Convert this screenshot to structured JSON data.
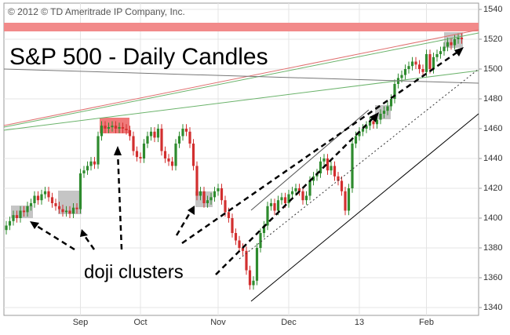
{
  "chart_data": {
    "type": "candlestick",
    "title": "S&P 500 - Daily Candles",
    "copyright": "© 2012 © TD Ameritrade IP Company, Inc.",
    "annotation": "doji clusters",
    "categories": [
      null,
      null,
      null,
      null,
      null,
      null,
      null,
      null,
      null,
      null,
      null,
      null,
      null,
      null,
      null,
      null,
      null,
      null,
      null,
      null,
      null,
      "Sep",
      null,
      null,
      null,
      null,
      null,
      null,
      null,
      null,
      null,
      null,
      null,
      null,
      null,
      null,
      null,
      null,
      "Oct",
      null,
      null,
      null,
      null,
      null,
      null,
      null,
      null,
      null,
      null,
      null,
      null,
      null,
      null,
      null,
      null,
      null,
      null,
      null,
      null,
      null,
      "Nov",
      null,
      null,
      null,
      null,
      null,
      null,
      null,
      null,
      null,
      null,
      null,
      null,
      null,
      null,
      null,
      null,
      null,
      null,
      null,
      "Dec",
      null,
      null,
      null,
      null,
      null,
      null,
      null,
      null,
      null,
      null,
      null,
      null,
      null,
      null,
      null,
      null,
      null,
      null,
      null,
      "13",
      null,
      null,
      null,
      null,
      null,
      null,
      null,
      null,
      null,
      null,
      null,
      null,
      null,
      null,
      null,
      null,
      null,
      null,
      "Feb",
      null,
      null,
      null,
      null,
      null,
      null,
      null,
      null,
      null,
      null
    ],
    "open": [
      1392,
      1395,
      1398,
      1402,
      1400,
      1405,
      1404,
      1408,
      1410,
      1415,
      1412,
      1416,
      1418,
      1414,
      1410,
      1408,
      1406,
      1404,
      1405,
      1403,
      1407,
      1406,
      1430,
      1432,
      1435,
      1438,
      1436,
      1455,
      1462,
      1460,
      1461,
      1462,
      1460,
      1461,
      1460,
      1459,
      1455,
      1445,
      1441,
      1440,
      1450,
      1455,
      1458,
      1454,
      1460,
      1445,
      1440,
      1438,
      1435,
      1450,
      1455,
      1460,
      1458,
      1450,
      1435,
      1415,
      1418,
      1410,
      1412,
      1414,
      1418,
      1420,
      1412,
      1404,
      1400,
      1390,
      1385,
      1380,
      1378,
      1365,
      1355,
      1358,
      1380,
      1390,
      1395,
      1408,
      1410,
      1405,
      1412,
      1414,
      1410,
      1416,
      1418,
      1420,
      1418,
      1412,
      1415,
      1425,
      1428,
      1430,
      1438,
      1440,
      1432,
      1435,
      1428,
      1425,
      1418,
      1405,
      1420,
      1450,
      1455,
      1458,
      1460,
      1462,
      1465,
      1463,
      1466,
      1470,
      1472,
      1475,
      1480,
      1490,
      1494,
      1496,
      1500,
      1502,
      1505,
      1503,
      1500,
      1498,
      1510,
      1500,
      1508,
      1510,
      1512,
      1515,
      1518,
      1516,
      1520,
      1521
    ],
    "high": [
      1398,
      1401,
      1405,
      1405,
      1408,
      1408,
      1411,
      1413,
      1418,
      1418,
      1419,
      1421,
      1421,
      1417,
      1413,
      1411,
      1409,
      1408,
      1408,
      1410,
      1410,
      1433,
      1435,
      1438,
      1441,
      1441,
      1458,
      1465,
      1465,
      1464,
      1465,
      1465,
      1464,
      1464,
      1463,
      1462,
      1458,
      1448,
      1444,
      1453,
      1458,
      1461,
      1461,
      1463,
      1463,
      1448,
      1443,
      1441,
      1453,
      1458,
      1463,
      1463,
      1461,
      1453,
      1438,
      1421,
      1421,
      1415,
      1417,
      1421,
      1423,
      1423,
      1415,
      1407,
      1403,
      1393,
      1388,
      1383,
      1381,
      1368,
      1361,
      1383,
      1393,
      1398,
      1411,
      1413,
      1413,
      1415,
      1417,
      1417,
      1419,
      1421,
      1423,
      1423,
      1421,
      1418,
      1428,
      1431,
      1433,
      1441,
      1443,
      1443,
      1438,
      1438,
      1431,
      1428,
      1421,
      1423,
      1453,
      1458,
      1461,
      1463,
      1465,
      1468,
      1468,
      1469,
      1473,
      1475,
      1478,
      1483,
      1493,
      1497,
      1499,
      1503,
      1505,
      1508,
      1508,
      1506,
      1503,
      1513,
      1513,
      1511,
      1513,
      1515,
      1518,
      1521,
      1521,
      1523,
      1524,
      1524
    ],
    "low": [
      1389,
      1392,
      1395,
      1397,
      1397,
      1401,
      1401,
      1405,
      1407,
      1409,
      1409,
      1413,
      1411,
      1407,
      1405,
      1403,
      1401,
      1401,
      1400,
      1400,
      1403,
      1403,
      1427,
      1429,
      1432,
      1433,
      1433,
      1452,
      1457,
      1457,
      1458,
      1457,
      1457,
      1457,
      1456,
      1452,
      1442,
      1438,
      1437,
      1437,
      1447,
      1452,
      1451,
      1451,
      1442,
      1437,
      1435,
      1432,
      1432,
      1447,
      1452,
      1455,
      1447,
      1432,
      1412,
      1412,
      1407,
      1407,
      1409,
      1411,
      1415,
      1409,
      1401,
      1397,
      1387,
      1382,
      1377,
      1375,
      1362,
      1352,
      1352,
      1355,
      1377,
      1387,
      1392,
      1405,
      1402,
      1402,
      1409,
      1407,
      1407,
      1413,
      1415,
      1415,
      1409,
      1409,
      1412,
      1422,
      1425,
      1427,
      1435,
      1429,
      1429,
      1425,
      1422,
      1415,
      1402,
      1402,
      1417,
      1447,
      1452,
      1455,
      1457,
      1459,
      1460,
      1460,
      1463,
      1467,
      1469,
      1472,
      1477,
      1487,
      1491,
      1493,
      1497,
      1499,
      1500,
      1497,
      1495,
      1495,
      1497,
      1497,
      1505,
      1507,
      1509,
      1512,
      1513,
      1513,
      1517,
      1517
    ],
    "close": [
      1395,
      1398,
      1402,
      1400,
      1405,
      1404,
      1408,
      1410,
      1415,
      1412,
      1416,
      1418,
      1414,
      1410,
      1408,
      1406,
      1404,
      1405,
      1403,
      1407,
      1406,
      1430,
      1432,
      1435,
      1438,
      1436,
      1455,
      1462,
      1460,
      1461,
      1462,
      1460,
      1461,
      1460,
      1459,
      1455,
      1445,
      1441,
      1440,
      1450,
      1455,
      1458,
      1454,
      1460,
      1445,
      1440,
      1438,
      1435,
      1450,
      1455,
      1460,
      1458,
      1450,
      1435,
      1415,
      1418,
      1410,
      1412,
      1414,
      1418,
      1420,
      1412,
      1404,
      1400,
      1390,
      1385,
      1380,
      1378,
      1365,
      1355,
      1358,
      1380,
      1390,
      1395,
      1408,
      1410,
      1405,
      1412,
      1414,
      1410,
      1416,
      1418,
      1420,
      1418,
      1412,
      1415,
      1425,
      1428,
      1430,
      1438,
      1440,
      1432,
      1435,
      1428,
      1425,
      1418,
      1405,
      1420,
      1450,
      1455,
      1458,
      1460,
      1462,
      1465,
      1463,
      1466,
      1470,
      1472,
      1475,
      1480,
      1490,
      1494,
      1496,
      1500,
      1502,
      1505,
      1503,
      1500,
      1498,
      1510,
      1500,
      1508,
      1510,
      1512,
      1515,
      1518,
      1516,
      1520,
      1521,
      1520
    ],
    "up_color": "#2e8b2e",
    "down_color": "#d22f2f",
    "ylim": [
      1340,
      1540
    ],
    "yticks": [
      1340,
      1360,
      1380,
      1400,
      1420,
      1440,
      1460,
      1480,
      1500,
      1520,
      1540
    ],
    "grid": true
  }
}
